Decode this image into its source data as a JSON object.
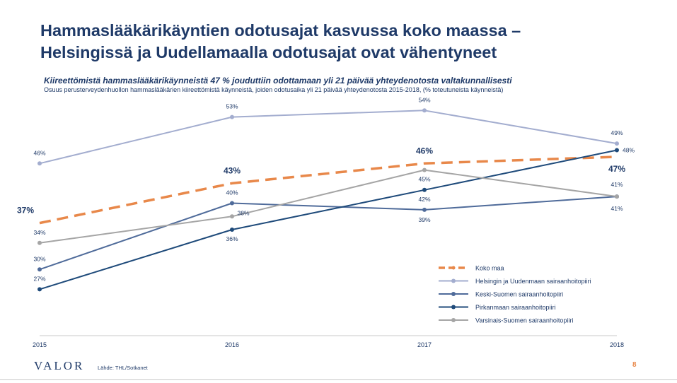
{
  "page": {
    "title_line1": "Hammaslääkärikäyntien odotusajat kasvussa koko maassa –",
    "title_line2": "Helsingissä ja Uudellamaalla odotusajat ovat vähentyneet",
    "subtitle": "Kiireettömistä hammaslääkärikäynneistä 47 % jouduttiin odottamaan yli 21 päivää yhteydenotosta valtakunnallisesti",
    "subnote": "Osuus perusterveydenhuollon hammaslääkärien kiireettömistä käynneistä, joiden odotusaika yli 21 päivää yhteydenotosta 2015-2018, (% toteutuneista käynneistä)",
    "logo": "VALOR",
    "source": "Lähde: THL/Sotkanet",
    "page_number": "8"
  },
  "chart_data": {
    "type": "line",
    "x": [
      "2015",
      "2016",
      "2017",
      "2018"
    ],
    "ylim": [
      20,
      60
    ],
    "grid": false,
    "legend_position": "bottom-right",
    "value_suffix": "%",
    "series": [
      {
        "name": "Koko maa",
        "values": [
          37,
          43,
          46,
          47
        ],
        "color": "#e8884a",
        "dashed": true,
        "bold_labels": true
      },
      {
        "name": "Helsingin ja Uudenmaan sairaanhoitopiiri",
        "values": [
          46,
          53,
          54,
          49
        ],
        "color": "#a3adcf",
        "dashed": false
      },
      {
        "name": "Keski-Suomen sairaanhoitopiiri",
        "values": [
          30,
          40,
          39,
          41
        ],
        "color": "#4f6b9a",
        "dashed": false
      },
      {
        "name": "Pirkanmaan sairaanhoitopiiri",
        "values": [
          27,
          36,
          42,
          48
        ],
        "color": "#1e4a7a",
        "dashed": false
      },
      {
        "name": "Varsinais-Suomen sairaanhoitopiiri",
        "values": [
          34,
          38,
          45,
          41
        ],
        "color": "#a5a5a5",
        "dashed": false
      }
    ]
  }
}
